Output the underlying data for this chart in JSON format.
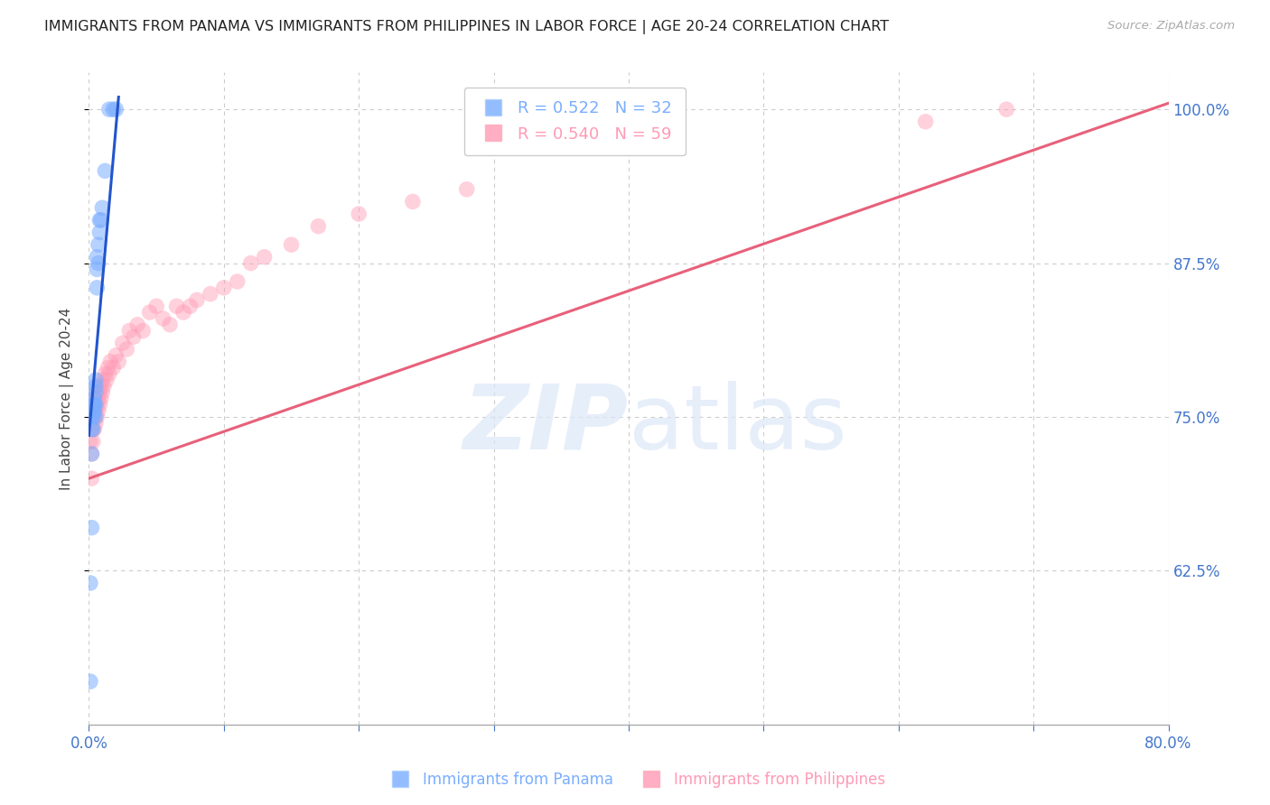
{
  "title": "IMMIGRANTS FROM PANAMA VS IMMIGRANTS FROM PHILIPPINES IN LABOR FORCE | AGE 20-24 CORRELATION CHART",
  "source": "Source: ZipAtlas.com",
  "ylabel_left": "In Labor Force | Age 20-24",
  "xlim": [
    0.0,
    0.8
  ],
  "ylim": [
    0.5,
    1.03
  ],
  "xticks": [
    0.0,
    0.1,
    0.2,
    0.3,
    0.4,
    0.5,
    0.6,
    0.7,
    0.8
  ],
  "yticks_right": [
    0.625,
    0.75,
    0.875,
    1.0
  ],
  "ytick_right_labels": [
    "62.5%",
    "75.0%",
    "87.5%",
    "100.0%"
  ],
  "panama_R": 0.522,
  "panama_N": 32,
  "philippines_R": 0.54,
  "philippines_N": 59,
  "panama_color": "#7aadff",
  "philippines_color": "#ff9ab5",
  "panama_line_color": "#2255cc",
  "philippines_line_color": "#e8607a",
  "panama_x": [
    0.001,
    0.001,
    0.002,
    0.002,
    0.002,
    0.002,
    0.003,
    0.003,
    0.003,
    0.003,
    0.004,
    0.004,
    0.004,
    0.004,
    0.005,
    0.005,
    0.005,
    0.005,
    0.005,
    0.006,
    0.006,
    0.006,
    0.007,
    0.007,
    0.008,
    0.008,
    0.009,
    0.01,
    0.012,
    0.015,
    0.018,
    0.02
  ],
  "panama_y": [
    0.535,
    0.615,
    0.66,
    0.72,
    0.74,
    0.75,
    0.74,
    0.75,
    0.755,
    0.76,
    0.755,
    0.76,
    0.76,
    0.765,
    0.75,
    0.76,
    0.77,
    0.775,
    0.78,
    0.855,
    0.87,
    0.88,
    0.875,
    0.89,
    0.9,
    0.91,
    0.91,
    0.92,
    0.95,
    1.0,
    1.0,
    1.0
  ],
  "panama_line_x": [
    0.0,
    0.022
  ],
  "panama_line_y": [
    0.735,
    1.01
  ],
  "philippines_x": [
    0.001,
    0.002,
    0.002,
    0.003,
    0.003,
    0.003,
    0.004,
    0.004,
    0.004,
    0.005,
    0.005,
    0.005,
    0.006,
    0.006,
    0.006,
    0.007,
    0.007,
    0.007,
    0.008,
    0.008,
    0.009,
    0.009,
    0.01,
    0.01,
    0.011,
    0.012,
    0.013,
    0.014,
    0.015,
    0.016,
    0.018,
    0.02,
    0.022,
    0.025,
    0.028,
    0.03,
    0.033,
    0.036,
    0.04,
    0.045,
    0.05,
    0.055,
    0.06,
    0.065,
    0.07,
    0.075,
    0.08,
    0.09,
    0.1,
    0.11,
    0.12,
    0.13,
    0.15,
    0.17,
    0.2,
    0.24,
    0.28,
    0.62,
    0.68
  ],
  "philippines_y": [
    0.73,
    0.7,
    0.72,
    0.73,
    0.74,
    0.75,
    0.74,
    0.75,
    0.755,
    0.745,
    0.755,
    0.765,
    0.75,
    0.76,
    0.77,
    0.755,
    0.765,
    0.775,
    0.76,
    0.77,
    0.765,
    0.775,
    0.77,
    0.78,
    0.775,
    0.785,
    0.78,
    0.79,
    0.785,
    0.795,
    0.79,
    0.8,
    0.795,
    0.81,
    0.805,
    0.82,
    0.815,
    0.825,
    0.82,
    0.835,
    0.84,
    0.83,
    0.825,
    0.84,
    0.835,
    0.84,
    0.845,
    0.85,
    0.855,
    0.86,
    0.875,
    0.88,
    0.89,
    0.905,
    0.915,
    0.925,
    0.935,
    0.99,
    1.0
  ],
  "philippines_line_x": [
    0.0,
    0.8
  ],
  "philippines_line_y": [
    0.7,
    1.005
  ],
  "watermark_zip": "ZIP",
  "watermark_atlas": "atlas"
}
